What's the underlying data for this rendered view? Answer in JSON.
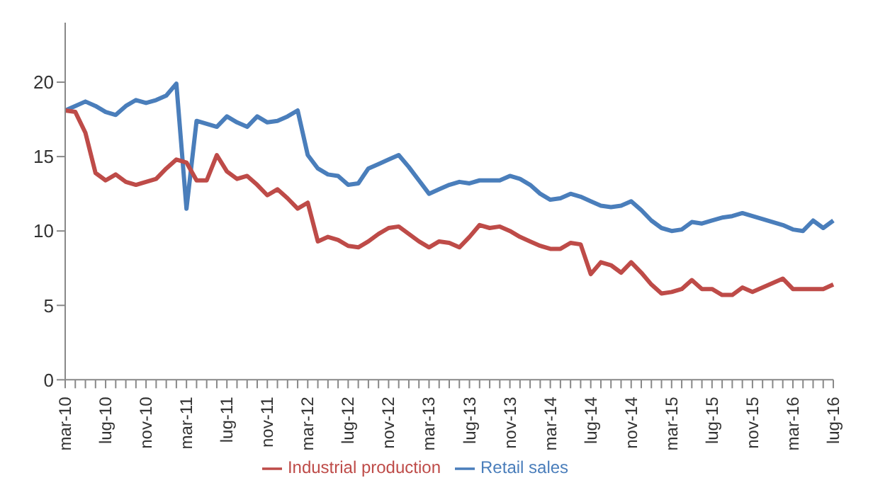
{
  "chart_data": {
    "type": "line",
    "categories": [
      "mar-10",
      null,
      null,
      null,
      "lug-10",
      null,
      null,
      null,
      "nov-10",
      null,
      null,
      null,
      "mar-11",
      null,
      null,
      null,
      "lug-11",
      null,
      null,
      null,
      "nov-11",
      null,
      null,
      null,
      "mar-12",
      null,
      null,
      null,
      "lug-12",
      null,
      null,
      null,
      "nov-12",
      null,
      null,
      null,
      "mar-13",
      null,
      null,
      null,
      "lug-13",
      null,
      null,
      null,
      "nov-13",
      null,
      null,
      null,
      "mar-14",
      null,
      null,
      null,
      "lug-14",
      null,
      null,
      null,
      "nov-14",
      null,
      null,
      null,
      "mar-15",
      null,
      null,
      null,
      "lug-15",
      null,
      null,
      null,
      "nov-15",
      null,
      null,
      null,
      "mar-16",
      null,
      null,
      null,
      "lug-16"
    ],
    "series": [
      {
        "name": "Retail sales",
        "color": "#4a7ebb",
        "values": [
          18.1,
          18.4,
          18.7,
          18.4,
          18.0,
          17.8,
          18.4,
          18.8,
          18.6,
          18.8,
          19.1,
          19.9,
          11.5,
          17.4,
          17.2,
          17.0,
          17.7,
          17.3,
          17.0,
          17.7,
          17.3,
          17.4,
          17.7,
          18.1,
          15.1,
          14.2,
          13.8,
          13.7,
          13.1,
          13.2,
          14.2,
          14.5,
          14.8,
          15.1,
          14.3,
          13.4,
          12.5,
          12.8,
          13.1,
          13.3,
          13.2,
          13.4,
          13.4,
          13.4,
          13.7,
          13.5,
          13.1,
          12.5,
          12.1,
          12.2,
          12.5,
          12.3,
          12.0,
          11.7,
          11.6,
          11.7,
          12.0,
          11.4,
          10.7,
          10.2,
          10.0,
          10.1,
          10.6,
          10.5,
          10.7,
          10.9,
          11.0,
          11.2,
          11.0,
          10.8,
          10.6,
          10.4,
          10.1,
          10.0,
          10.7,
          10.2,
          10.7
        ]
      },
      {
        "name": "Industrial production",
        "color": "#be4b48",
        "values": [
          18.1,
          18.0,
          16.6,
          13.9,
          13.4,
          13.8,
          13.3,
          13.1,
          13.3,
          13.5,
          14.2,
          14.8,
          14.6,
          13.4,
          13.4,
          15.1,
          14.0,
          13.5,
          13.7,
          13.1,
          12.4,
          12.8,
          12.2,
          11.5,
          11.9,
          9.3,
          9.6,
          9.4,
          9.0,
          8.9,
          9.3,
          9.8,
          10.2,
          10.3,
          9.8,
          9.3,
          8.9,
          9.3,
          9.2,
          8.9,
          9.6,
          10.4,
          10.2,
          10.3,
          10.0,
          9.6,
          9.3,
          9.0,
          8.8,
          8.8,
          9.2,
          9.1,
          7.1,
          7.9,
          7.7,
          7.2,
          7.9,
          7.2,
          6.4,
          5.8,
          5.9,
          6.1,
          6.7,
          6.1,
          6.1,
          5.7,
          5.7,
          6.2,
          5.9,
          6.2,
          6.5,
          6.8,
          6.1,
          6.1,
          6.1,
          6.1,
          6.4
        ]
      }
    ],
    "ylim": [
      0,
      24
    ],
    "yticks": [
      0,
      5,
      10,
      15,
      20
    ],
    "grid": false,
    "legend": "bottom",
    "marker": "none",
    "line_style": "solid"
  }
}
